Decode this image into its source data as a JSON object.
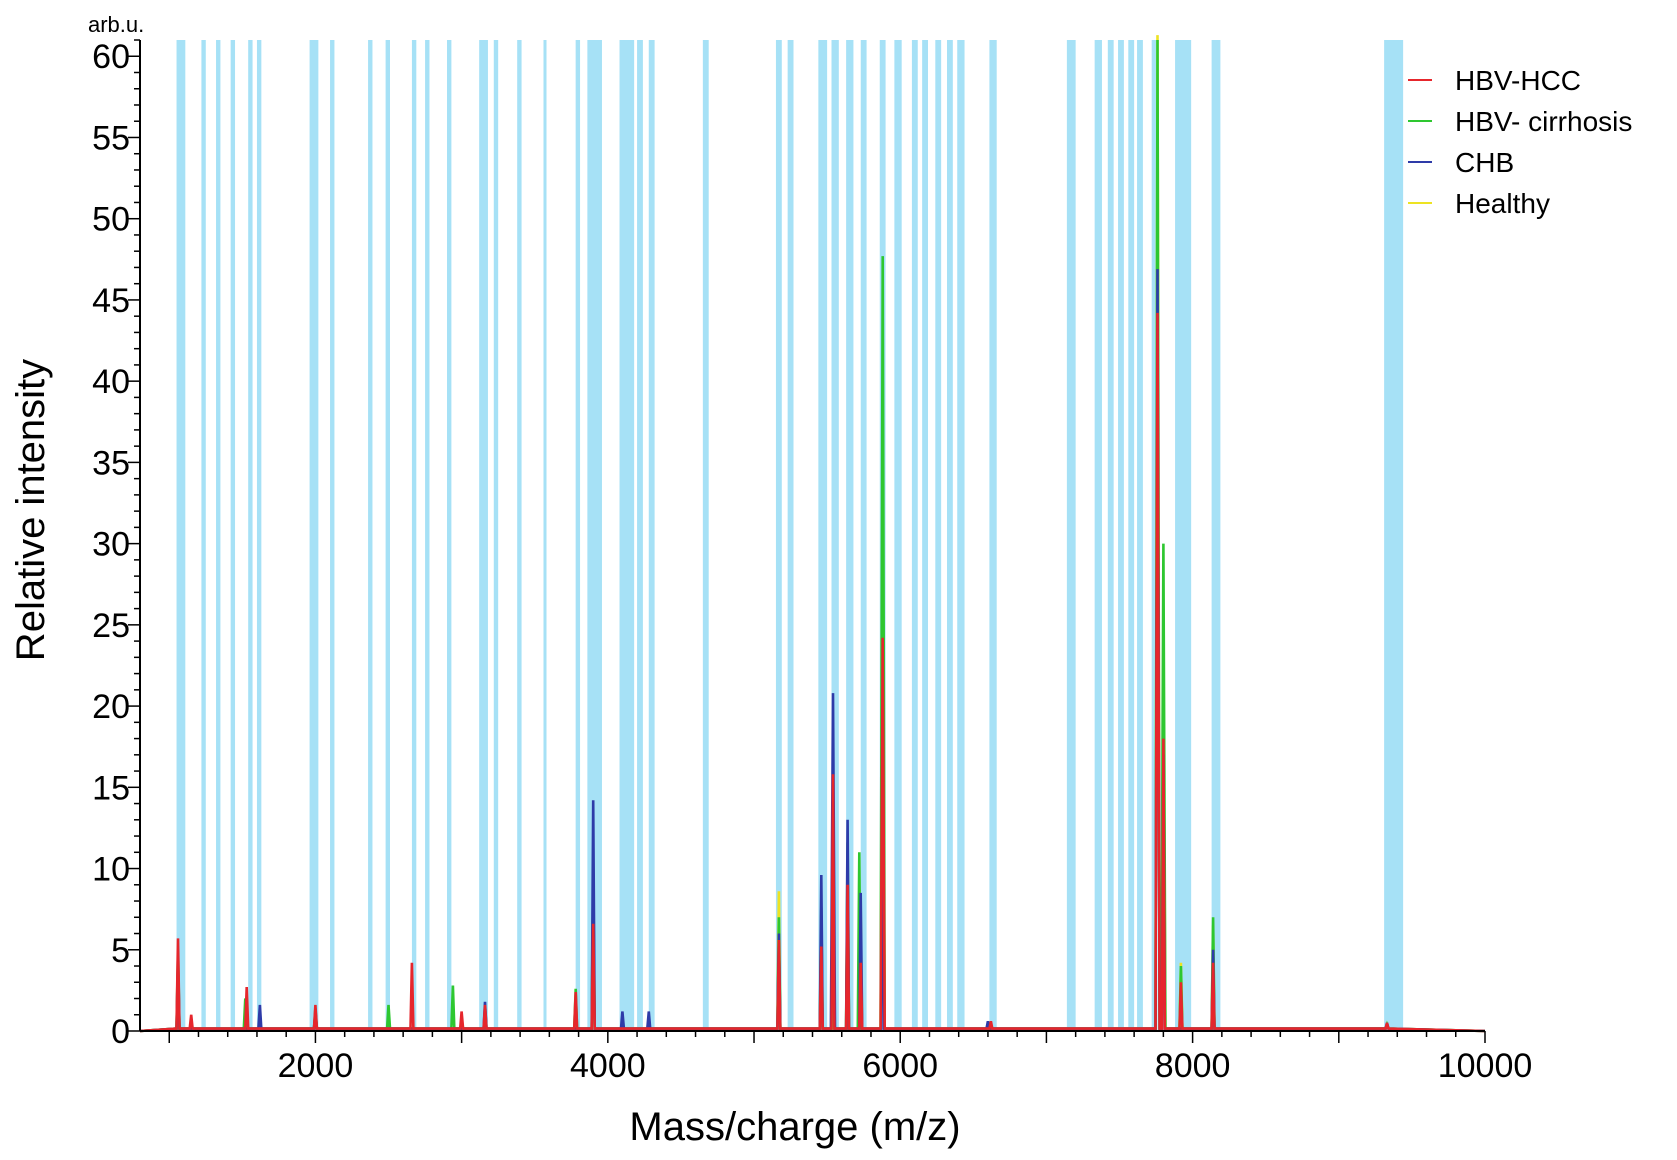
{
  "chart_data": {
    "type": "line",
    "unit_label": "arb.u.",
    "xlabel": "Mass/charge (m/z)",
    "ylabel": "Relative intensity",
    "xlim": [
      800,
      10000
    ],
    "ylim": [
      0,
      61
    ],
    "x_ticks": [
      2000,
      4000,
      6000,
      8000,
      10000
    ],
    "y_ticks": [
      0,
      5,
      10,
      15,
      20,
      25,
      30,
      35,
      40,
      45,
      50,
      55,
      60
    ],
    "legend_position": "top-right",
    "highlight_color": "#a6e1f6",
    "highlight_bands": [
      [
        1050,
        1110
      ],
      [
        1220,
        1250
      ],
      [
        1320,
        1350
      ],
      [
        1420,
        1450
      ],
      [
        1540,
        1570
      ],
      [
        1600,
        1630
      ],
      [
        1960,
        2020
      ],
      [
        2100,
        2130
      ],
      [
        2360,
        2390
      ],
      [
        2480,
        2510
      ],
      [
        2660,
        2690
      ],
      [
        2750,
        2780
      ],
      [
        2900,
        2930
      ],
      [
        3120,
        3180
      ],
      [
        3220,
        3250
      ],
      [
        3380,
        3410
      ],
      [
        3560,
        3580
      ],
      [
        3780,
        3810
      ],
      [
        3860,
        3960
      ],
      [
        4080,
        4180
      ],
      [
        4200,
        4240
      ],
      [
        4280,
        4320
      ],
      [
        4650,
        4690
      ],
      [
        5150,
        5190
      ],
      [
        5230,
        5270
      ],
      [
        5440,
        5500
      ],
      [
        5530,
        5580
      ],
      [
        5630,
        5680
      ],
      [
        5730,
        5770
      ],
      [
        5860,
        5900
      ],
      [
        5960,
        6010
      ],
      [
        6080,
        6120
      ],
      [
        6150,
        6190
      ],
      [
        6240,
        6280
      ],
      [
        6320,
        6360
      ],
      [
        6390,
        6440
      ],
      [
        6610,
        6660
      ],
      [
        7140,
        7200
      ],
      [
        7330,
        7380
      ],
      [
        7420,
        7460
      ],
      [
        7490,
        7530
      ],
      [
        7560,
        7600
      ],
      [
        7620,
        7660
      ],
      [
        7720,
        7760
      ],
      [
        7880,
        7990
      ],
      [
        8130,
        8190
      ],
      [
        9310,
        9440
      ]
    ],
    "series": [
      {
        "name": "HBV-HCC",
        "color": "#e6262c",
        "peaks": [
          [
            1060,
            5.7
          ],
          [
            1150,
            1.0
          ],
          [
            1530,
            2.7
          ],
          [
            2000,
            1.6
          ],
          [
            2660,
            4.2
          ],
          [
            3000,
            1.2
          ],
          [
            3160,
            1.6
          ],
          [
            3780,
            2.4
          ],
          [
            3900,
            6.6
          ],
          [
            5170,
            5.6
          ],
          [
            5460,
            5.2
          ],
          [
            5540,
            15.8
          ],
          [
            5640,
            9.0
          ],
          [
            5730,
            4.2
          ],
          [
            5880,
            24.2
          ],
          [
            6620,
            0.6
          ],
          [
            7760,
            44.2
          ],
          [
            7800,
            18.0
          ],
          [
            7920,
            3.0
          ],
          [
            8140,
            4.2
          ],
          [
            9330,
            0.5
          ]
        ]
      },
      {
        "name": "HBV- cirrhosis",
        "color": "#2ec730",
        "peaks": [
          [
            1060,
            5.0
          ],
          [
            1520,
            2.0
          ],
          [
            2000,
            1.4
          ],
          [
            2500,
            1.6
          ],
          [
            2940,
            2.8
          ],
          [
            3780,
            2.6
          ],
          [
            3900,
            10.2
          ],
          [
            5170,
            7.0
          ],
          [
            5460,
            7.6
          ],
          [
            5540,
            15.8
          ],
          [
            5640,
            11.6
          ],
          [
            5720,
            11.0
          ],
          [
            5880,
            47.7
          ],
          [
            7760,
            61.0
          ],
          [
            7800,
            30.0
          ],
          [
            7920,
            4.0
          ],
          [
            8140,
            7.0
          ],
          [
            9330,
            0.4
          ]
        ]
      },
      {
        "name": "CHB",
        "color": "#2e3ba8",
        "peaks": [
          [
            1060,
            4.4
          ],
          [
            1620,
            1.6
          ],
          [
            2000,
            1.2
          ],
          [
            3160,
            1.8
          ],
          [
            3900,
            14.2
          ],
          [
            4100,
            1.2
          ],
          [
            4280,
            1.2
          ],
          [
            5170,
            6.0
          ],
          [
            5460,
            9.6
          ],
          [
            5540,
            20.8
          ],
          [
            5640,
            13.0
          ],
          [
            5730,
            8.5
          ],
          [
            5880,
            18.0
          ],
          [
            6600,
            0.6
          ],
          [
            7760,
            46.9
          ],
          [
            7800,
            17.0
          ],
          [
            8140,
            5.0
          ],
          [
            9330,
            0.5
          ]
        ]
      },
      {
        "name": "Healthy",
        "color": "#ede322",
        "peaks": [
          [
            1060,
            4.0
          ],
          [
            2000,
            1.2
          ],
          [
            3900,
            9.0
          ],
          [
            5170,
            8.6
          ],
          [
            5460,
            6.0
          ],
          [
            5540,
            14.0
          ],
          [
            5640,
            10.0
          ],
          [
            5730,
            7.0
          ],
          [
            5880,
            30.0
          ],
          [
            7760,
            61.3
          ],
          [
            7800,
            22.0
          ],
          [
            7920,
            4.2
          ],
          [
            8140,
            6.5
          ],
          [
            9330,
            0.4
          ]
        ]
      }
    ]
  }
}
